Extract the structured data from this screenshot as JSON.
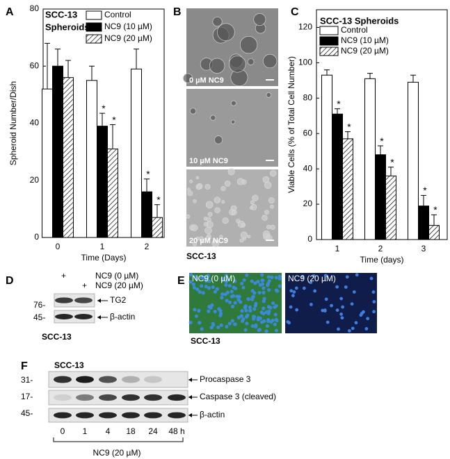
{
  "chart_data": [
    {
      "type": "bar",
      "title_lines": [
        "SCC-13",
        "Spheroids"
      ],
      "xlabel": "Time (Days)",
      "ylabel": "Spheroid Number/Dish",
      "categories": [
        "0",
        "1",
        "2"
      ],
      "ylim": [
        0,
        80
      ],
      "yticks": [
        0,
        20,
        40,
        60,
        80
      ],
      "legend": "upper right",
      "series": [
        {
          "name": "Control",
          "color": "#ffffff",
          "hatch": false,
          "values": [
            52,
            55,
            59
          ],
          "errors": [
            16,
            5,
            7
          ],
          "significance": [
            null,
            null,
            null
          ]
        },
        {
          "name": "NC9 (10 µM)",
          "color": "#000000",
          "hatch": false,
          "values": [
            60,
            39,
            16
          ],
          "errors": [
            6,
            4.5,
            4.5
          ],
          "significance": [
            null,
            "*",
            "*"
          ]
        },
        {
          "name": "NC9 (20 µM)",
          "color": "#ffffff",
          "hatch": true,
          "values": [
            56,
            31,
            7
          ],
          "errors": [
            6,
            8.5,
            4.5
          ],
          "significance": [
            null,
            "*",
            "*"
          ]
        }
      ]
    },
    {
      "type": "bar",
      "title_lines": [
        "SCC-13 Spheroids"
      ],
      "xlabel": "Time (days)",
      "ylabel": "Viable Cells (% of Total Cell Number)",
      "categories": [
        "1",
        "2",
        "3"
      ],
      "ylim": [
        0,
        130
      ],
      "yticks": [
        0,
        20,
        40,
        60,
        80,
        100,
        120
      ],
      "legend": "upper left",
      "series": [
        {
          "name": "Control",
          "color": "#ffffff",
          "hatch": false,
          "values": [
            93,
            91,
            89
          ],
          "errors": [
            3,
            3,
            4
          ],
          "significance": [
            null,
            null,
            null
          ]
        },
        {
          "name": "NC9 (10 µM)",
          "color": "#000000",
          "hatch": false,
          "values": [
            71,
            48,
            19
          ],
          "errors": [
            3,
            5,
            6
          ],
          "significance": [
            "*",
            "*",
            "*"
          ]
        },
        {
          "name": "NC9 (20 µM)",
          "color": "#ffffff",
          "hatch": true,
          "values": [
            57,
            36,
            8
          ],
          "errors": [
            4,
            5,
            6
          ],
          "significance": [
            "*",
            "*",
            "*"
          ]
        }
      ]
    }
  ],
  "figure": {
    "panel_labels": [
      "A",
      "B",
      "C",
      "D",
      "E",
      "F"
    ],
    "b": {
      "images": [
        "0 µM NC9",
        "10 µM NC9",
        "20 µM NC9"
      ],
      "cell_line": "SCC-13"
    },
    "d": {
      "lanes": [
        "+",
        "+"
      ],
      "treatments": [
        "NC9 (0 µM)",
        "NC9 (20 µM)"
      ],
      "markers": [
        "76-",
        "45-"
      ],
      "bands": [
        "TG2",
        "β-actin"
      ],
      "cell_line": "SCC-13"
    },
    "e": {
      "images": [
        "NC9 (0 µM)",
        "NC9 (20 µM)"
      ],
      "cell_line": "SCC-13"
    },
    "f": {
      "cell_line": "SCC-13",
      "markers": [
        "31-",
        "17-",
        "45-"
      ],
      "bands": [
        "Procaspase 3",
        "Caspase 3 (cleaved)",
        "β-actin"
      ],
      "times": [
        "0",
        "1",
        "4",
        "18",
        "24",
        "48 h"
      ],
      "treatment": "NC9 (20 µM)"
    }
  }
}
